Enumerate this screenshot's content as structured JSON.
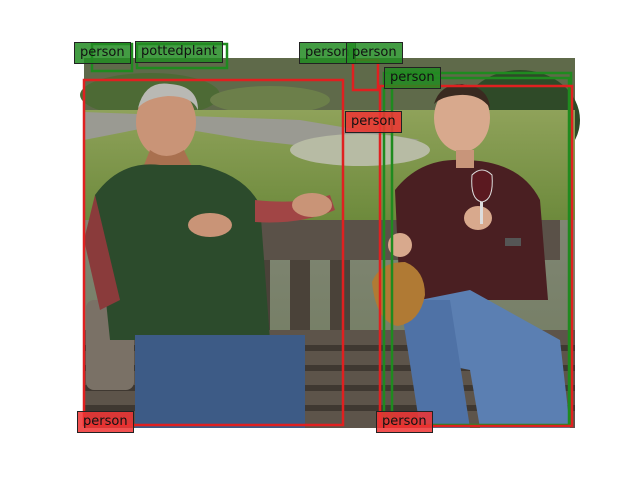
{
  "image": {
    "description_free": true,
    "colors": {
      "ground_truth": "#1f8a1f",
      "prediction": "#e02020"
    }
  },
  "detections": [
    {
      "label": "person",
      "color": "green"
    },
    {
      "label": "pottedplant",
      "color": "green"
    },
    {
      "label": "person",
      "color": "green"
    },
    {
      "label": "person",
      "color": "green"
    },
    {
      "label": "person",
      "color": "green"
    },
    {
      "label": "person",
      "color": "red"
    },
    {
      "label": "person",
      "color": "red"
    },
    {
      "label": "person",
      "color": "red"
    }
  ]
}
